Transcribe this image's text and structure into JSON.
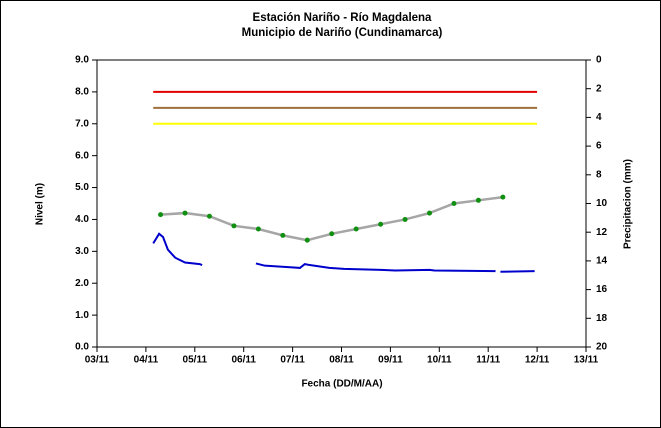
{
  "chart_data": {
    "type": "line",
    "title": "Estación Nariño  - Río Magdalena",
    "subtitle": "Municipio de Nariño (Cundinamarca)",
    "x_label": "Fecha (DD/M/AA)",
    "y_label": "Nivel (m)",
    "y2_label": "Precipitacion (mm)",
    "xlim": [
      3,
      13
    ],
    "xticks": [
      {
        "value": 3,
        "label": "03/11"
      },
      {
        "value": 4,
        "label": "04/11"
      },
      {
        "value": 5,
        "label": "05/11"
      },
      {
        "value": 6,
        "label": "06/11"
      },
      {
        "value": 7,
        "label": "07/11"
      },
      {
        "value": 8,
        "label": "08/11"
      },
      {
        "value": 9,
        "label": "09/11"
      },
      {
        "value": 10,
        "label": "10/11"
      },
      {
        "value": 11,
        "label": "11/11"
      },
      {
        "value": 12,
        "label": "12/11"
      },
      {
        "value": 13,
        "label": "13/11"
      }
    ],
    "ylim": [
      0,
      9
    ],
    "yticks": [
      {
        "value": 0,
        "label": "0.0"
      },
      {
        "value": 1,
        "label": "1.0"
      },
      {
        "value": 2,
        "label": "2.0"
      },
      {
        "value": 3,
        "label": "3.0"
      },
      {
        "value": 4,
        "label": "4.0"
      },
      {
        "value": 5,
        "label": "5.0"
      },
      {
        "value": 6,
        "label": "6.0"
      },
      {
        "value": 7,
        "label": "7.0"
      },
      {
        "value": 8,
        "label": "8.0"
      },
      {
        "value": 9,
        "label": "9.0"
      }
    ],
    "y2lim": [
      20,
      0
    ],
    "y2ticks": [
      0,
      2,
      4,
      6,
      8,
      10,
      12,
      14,
      16,
      18,
      20
    ],
    "series": [
      {
        "color": "#e00000",
        "x": [
          4.15,
          12.0
        ],
        "values": [
          8.0,
          8.0
        ]
      },
      {
        "color": "#a0703c",
        "x": [
          4.15,
          12.0
        ],
        "values": [
          7.5,
          7.5
        ]
      },
      {
        "color": "#ffff00",
        "x": [
          4.15,
          12.0
        ],
        "values": [
          7.0,
          7.0
        ]
      },
      {
        "color": "#a6a6a6",
        "marker_color": "#109010",
        "x": [
          4.3,
          4.8,
          5.3,
          5.8,
          6.3,
          6.8,
          7.3,
          7.8,
          8.3,
          8.8,
          9.3,
          9.8,
          10.3,
          10.8,
          11.3
        ],
        "values": [
          4.15,
          4.2,
          4.1,
          3.8,
          3.7,
          3.5,
          3.35,
          3.55,
          3.7,
          3.85,
          4.0,
          4.2,
          4.5,
          4.6,
          4.7
        ]
      },
      {
        "color": "#0000cc",
        "x": [
          4.15,
          4.27,
          4.35,
          4.45,
          4.6,
          4.8,
          5.1,
          5.15,
          5.6,
          6.25,
          6.43,
          6.95,
          7.15,
          7.25,
          7.35,
          7.75,
          8.05,
          8.8,
          9.1,
          9.8,
          9.9,
          11.15,
          11.2,
          11.25,
          11.95
        ],
        "values": [
          3.25,
          3.55,
          3.45,
          3.05,
          2.8,
          2.65,
          2.6,
          2.57,
          null,
          2.62,
          2.55,
          2.5,
          2.48,
          2.6,
          2.57,
          2.48,
          2.45,
          2.42,
          2.4,
          2.42,
          2.4,
          2.38,
          null,
          2.36,
          2.38
        ]
      }
    ]
  }
}
